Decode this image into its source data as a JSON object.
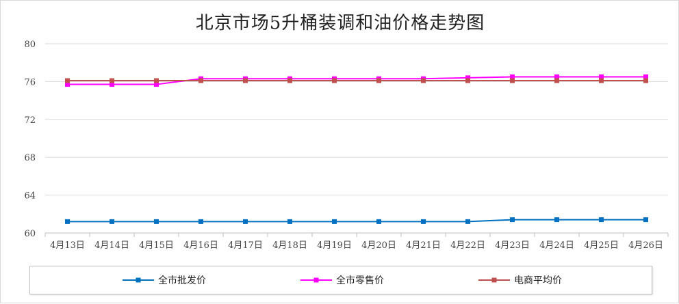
{
  "chart_data": {
    "type": "line",
    "title": "北京市场5升桶装调和油价格走势图",
    "xlabel": "",
    "ylabel": "",
    "categories": [
      "4月13日",
      "4月14日",
      "4月15日",
      "4月16日",
      "4月17日",
      "4月18日",
      "4月19日",
      "4月20日",
      "4月21日",
      "4月22日",
      "4月23日",
      "4月24日",
      "4月25日",
      "4月26日"
    ],
    "ylim": [
      60,
      80
    ],
    "yticks": [
      60,
      64,
      68,
      72,
      76,
      80
    ],
    "grid": true,
    "legend_position": "bottom",
    "series": [
      {
        "name": "全市批发价",
        "color": "#0070c0",
        "marker": "square",
        "values": [
          61.2,
          61.2,
          61.2,
          61.2,
          61.2,
          61.2,
          61.2,
          61.2,
          61.2,
          61.2,
          61.4,
          61.4,
          61.4,
          61.4
        ]
      },
      {
        "name": "全市零售价",
        "color": "#ff00ff",
        "marker": "square",
        "values": [
          75.7,
          75.7,
          75.7,
          76.3,
          76.3,
          76.3,
          76.3,
          76.3,
          76.3,
          76.4,
          76.5,
          76.5,
          76.5,
          76.5
        ]
      },
      {
        "name": "电商平均价",
        "color": "#c0504d",
        "marker": "square",
        "values": [
          76.1,
          76.1,
          76.1,
          76.1,
          76.1,
          76.1,
          76.1,
          76.1,
          76.1,
          76.1,
          76.1,
          76.1,
          76.1,
          76.1
        ]
      }
    ]
  }
}
